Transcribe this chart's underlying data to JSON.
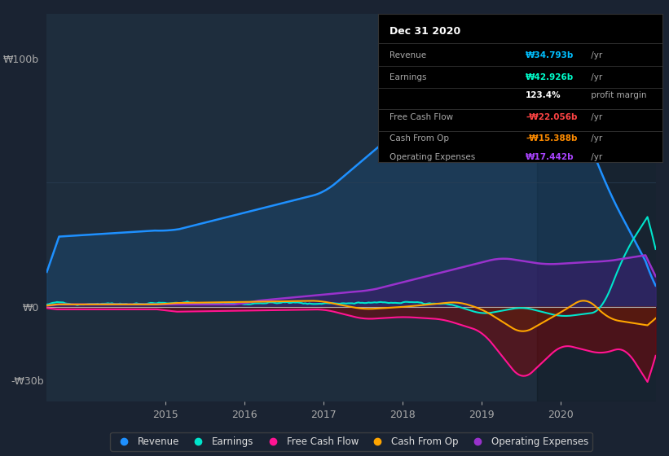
{
  "bg_color": "#1a2332",
  "plot_bg_color": "#1e2d3d",
  "title_box_bg": "#000000",
  "title_box_title": "Dec 31 2020",
  "info_rows": [
    {
      "label": "Revenue",
      "value": "₩34.793b /yr",
      "value_color": "#00bfff"
    },
    {
      "label": "Earnings",
      "value": "₩42.926b /yr",
      "value_color": "#00ffcc"
    },
    {
      "label": "",
      "value": "123.4% profit margin",
      "value_color": "#ffffff"
    },
    {
      "label": "Free Cash Flow",
      "value": "-₩22.056b /yr",
      "value_color": "#ff4444"
    },
    {
      "label": "Cash From Op",
      "value": "-₩15.388b /yr",
      "value_color": "#ff8c00"
    },
    {
      "label": "Operating Expenses",
      "value": "₩17.442b /yr",
      "value_color": "#aa44ff"
    }
  ],
  "legend_items": [
    {
      "label": "Revenue",
      "color": "#1e90ff"
    },
    {
      "label": "Earnings",
      "color": "#00e5cc"
    },
    {
      "label": "Free Cash Flow",
      "color": "#ff1493"
    },
    {
      "label": "Cash From Op",
      "color": "#ffa500"
    },
    {
      "label": "Operating Expenses",
      "color": "#9932cc"
    }
  ]
}
